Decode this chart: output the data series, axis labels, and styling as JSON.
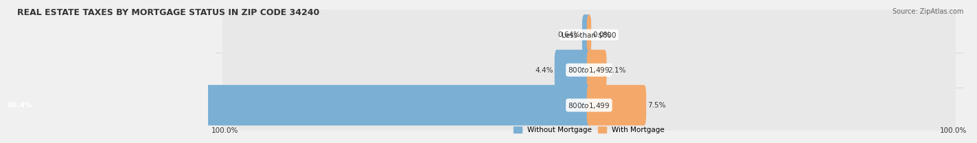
{
  "title": "REAL ESTATE TAXES BY MORTGAGE STATUS IN ZIP CODE 34240",
  "source_text": "Source: ZipAtlas.com",
  "rows": [
    {
      "label": "Less than $800",
      "without_mortgage": 0.64,
      "with_mortgage": 0.0
    },
    {
      "label": "$800 to $1,499",
      "without_mortgage": 4.4,
      "with_mortgage": 2.1
    },
    {
      "label": "$800 to $1,499",
      "without_mortgage": 80.4,
      "with_mortgage": 7.5
    }
  ],
  "left_axis_label": "100.0%",
  "right_axis_label": "100.0%",
  "color_without": "#7bafd4",
  "color_with": "#f4a96a",
  "legend_without": "Without Mortgage",
  "legend_with": "With Mortgage",
  "bg_color": "#f0f0f0",
  "row_bg_color": "#e8e8e8",
  "title_fontsize": 9,
  "label_fontsize": 7.5,
  "max_value": 100.0
}
